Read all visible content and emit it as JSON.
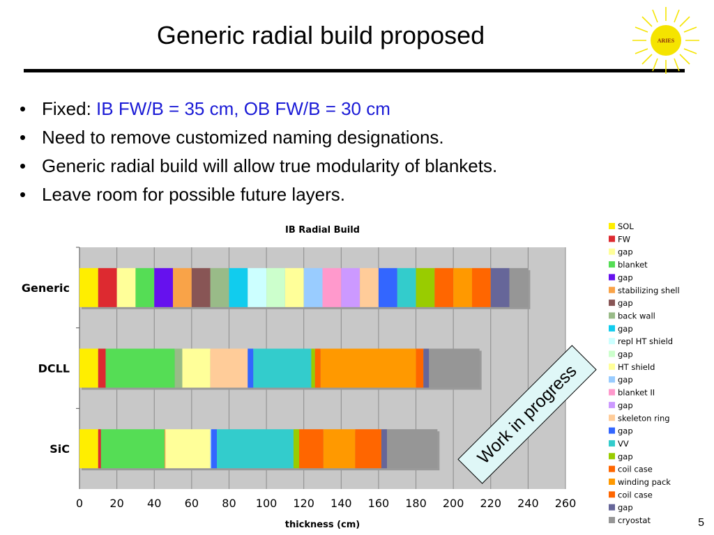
{
  "slide": {
    "title": "Generic radial build proposed",
    "bullets": [
      {
        "prefix": "Fixed: ",
        "highlight": "IB FW/B = 35 cm, OB FW/B = 30 cm"
      },
      {
        "prefix": "Need to remove customized naming designations.",
        "highlight": ""
      },
      {
        "prefix": "Generic radial build will allow true modularity of blankets.",
        "highlight": ""
      },
      {
        "prefix": "Leave room for possible future layers.",
        "highlight": ""
      }
    ],
    "stamp": "Work in progress",
    "page_number": "5",
    "logo_text": "ARIES",
    "accent_color": "#1a1ad6"
  },
  "chart_data": {
    "type": "bar",
    "orientation": "horizontal",
    "stacked": true,
    "title": "IB Radial Build",
    "xlabel": "thickness (cm)",
    "ylabel": "",
    "xlim": [
      0,
      260
    ],
    "xticks": [
      "0",
      "20",
      "40",
      "60",
      "80",
      "100",
      "120",
      "140",
      "160",
      "180",
      "200",
      "220",
      "240",
      "260"
    ],
    "grid": true,
    "legend_position": "right",
    "categories": [
      "Generic",
      "DCLL",
      "SiC"
    ],
    "series": [
      {
        "name": "SOL",
        "color": "#ffee00",
        "values": [
          10,
          10,
          10
        ]
      },
      {
        "name": "FW",
        "color": "#dd2a30",
        "values": [
          10,
          4,
          1.5
        ]
      },
      {
        "name": "gap",
        "color": "#ffff99",
        "values": [
          10,
          0,
          0
        ]
      },
      {
        "name": "blanket",
        "color": "#55dd55",
        "values": [
          10,
          37,
          34
        ]
      },
      {
        "name": "gap",
        "color": "#6611ee",
        "values": [
          10,
          0,
          0
        ]
      },
      {
        "name": "stabilizing shell",
        "color": "#f9a348",
        "values": [
          10,
          0,
          0.5
        ]
      },
      {
        "name": "gap",
        "color": "#885555",
        "values": [
          10,
          0,
          0
        ]
      },
      {
        "name": "back wall",
        "color": "#99bb88",
        "values": [
          10,
          4,
          0
        ]
      },
      {
        "name": "gap",
        "color": "#11ccee",
        "values": [
          10,
          0,
          0
        ]
      },
      {
        "name": "repl HT shield",
        "color": "#ccffff",
        "values": [
          10,
          0,
          0
        ]
      },
      {
        "name": "gap",
        "color": "#ccffcc",
        "values": [
          10,
          0,
          0
        ]
      },
      {
        "name": "HT shield",
        "color": "#ffff99",
        "values": [
          10,
          15,
          24
        ]
      },
      {
        "name": "gap",
        "color": "#99ccff",
        "values": [
          10,
          0,
          0.5
        ]
      },
      {
        "name": "blanket II",
        "color": "#ff99cc",
        "values": [
          10,
          0,
          0
        ]
      },
      {
        "name": "gap",
        "color": "#cc99ff",
        "values": [
          10,
          0,
          0
        ]
      },
      {
        "name": "skeleton ring",
        "color": "#ffcc99",
        "values": [
          10,
          20,
          0
        ]
      },
      {
        "name": "gap",
        "color": "#3366ff",
        "values": [
          10,
          3,
          3
        ]
      },
      {
        "name": "VV",
        "color": "#33cccc",
        "values": [
          10,
          31,
          41
        ]
      },
      {
        "name": "gap",
        "color": "#99cc00",
        "values": [
          10,
          2,
          3
        ]
      },
      {
        "name": "coil case",
        "color": "#ff6600",
        "values": [
          10,
          3,
          13
        ]
      },
      {
        "name": "winding pack",
        "color": "#ff9900",
        "values": [
          10,
          51,
          17
        ]
      },
      {
        "name": "coil case",
        "color": "#ff6600",
        "values": [
          10,
          4,
          14
        ]
      },
      {
        "name": "gap",
        "color": "#666699",
        "values": [
          10,
          3,
          3
        ]
      },
      {
        "name": "cryostat",
        "color": "#969696",
        "values": [
          10,
          27,
          27
        ]
      }
    ]
  }
}
